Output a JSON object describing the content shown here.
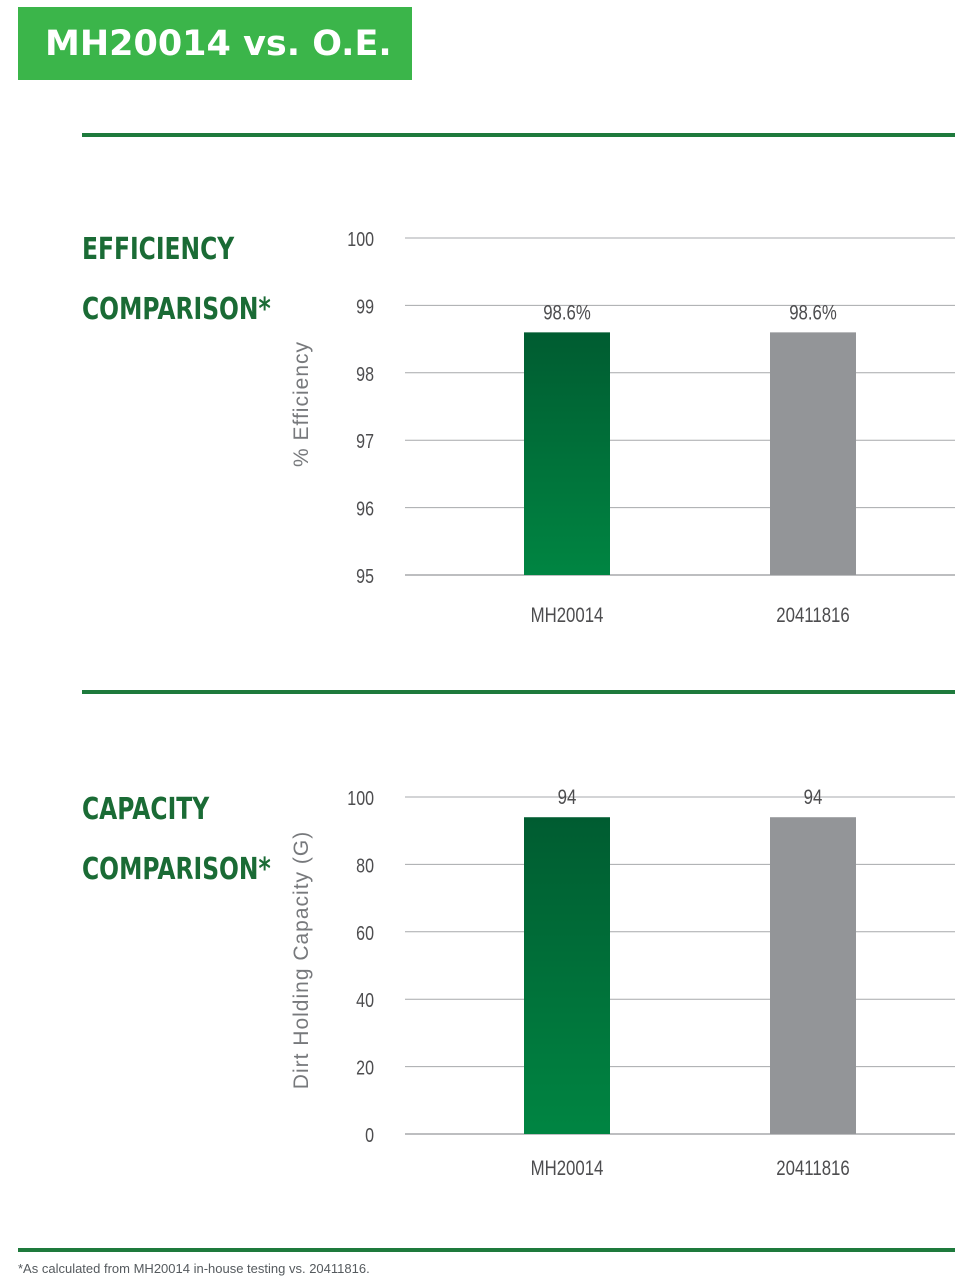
{
  "header": {
    "title": "MH20014 vs. O.E."
  },
  "sections": [
    {
      "title_line1": "EFFICIENCY",
      "title_line2": "COMPARISON*"
    },
    {
      "title_line1": "CAPACITY",
      "title_line2": "COMPARISON*"
    }
  ],
  "colors": {
    "accent": "#3bb54a",
    "brand_dark": "#1a6b35",
    "bar_green_top": "#005c31",
    "bar_green_bottom": "#008542",
    "bar_gray": "#939598",
    "gridline": "#a7a9ac"
  },
  "chart_data": [
    {
      "type": "bar",
      "categories": [
        "MH20014",
        "20411816"
      ],
      "values": [
        98.6,
        98.6
      ],
      "value_labels": [
        "98.6%",
        "98.6%"
      ],
      "title": "",
      "xlabel": "",
      "ylabel": "% Efficiency",
      "ylim": [
        95,
        100
      ],
      "yticks": [
        95,
        96,
        97,
        98,
        99,
        100
      ],
      "grid": true
    },
    {
      "type": "bar",
      "categories": [
        "MH20014",
        "20411816"
      ],
      "values": [
        94,
        94
      ],
      "value_labels": [
        "94",
        "94"
      ],
      "title": "",
      "xlabel": "",
      "ylabel": "Dirt Holding Capacity (G)",
      "ylim": [
        0,
        100
      ],
      "yticks": [
        0,
        20,
        40,
        60,
        80,
        100
      ],
      "grid": true
    }
  ],
  "footnote": "*As calculated from MH20014 in-house testing vs. 20411816."
}
